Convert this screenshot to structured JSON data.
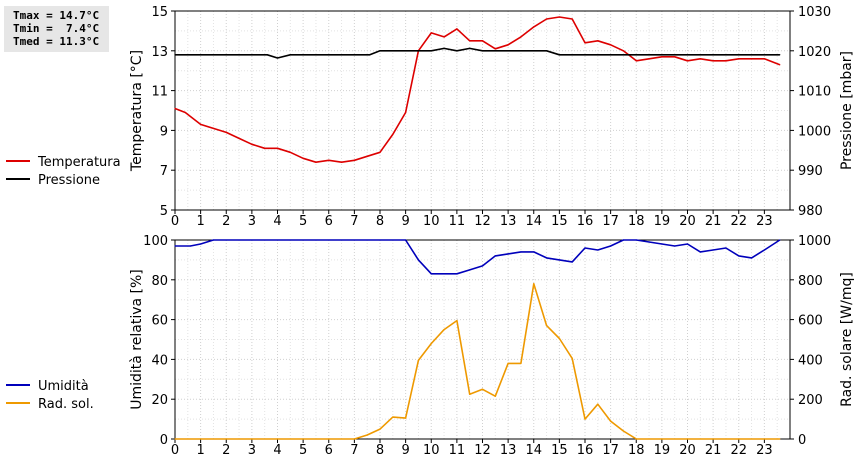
{
  "stats": {
    "tmax": "Tmax = 14.7°C",
    "tmin": "Tmin =  7.4°C",
    "tmed": "Tmed = 11.3°C"
  },
  "chart_data": [
    {
      "type": "line",
      "title": "",
      "xlabel": "",
      "x_ticks": [
        "0",
        "1",
        "2",
        "3",
        "4",
        "5",
        "6",
        "7",
        "8",
        "9",
        "10",
        "11",
        "12",
        "13",
        "14",
        "15",
        "16",
        "17",
        "18",
        "19",
        "20",
        "21",
        "22",
        "23"
      ],
      "xlim": [
        0,
        24
      ],
      "ylabel": "Temperatura [°C]",
      "ylim": [
        5,
        15
      ],
      "y_ticks": [
        "5",
        "7",
        "9",
        "11",
        "13",
        "15"
      ],
      "y2label": "Pressione [mbar]",
      "y2lim": [
        980,
        1030
      ],
      "y2_ticks": [
        "980",
        "990",
        "1000",
        "1010",
        "1020",
        "1030"
      ],
      "grid": true,
      "legend_position": "left",
      "series": [
        {
          "name": "Temperatura",
          "axis": "left",
          "color": "#dd0000",
          "points": [
            [
              0,
              10.1
            ],
            [
              0.4,
              9.9
            ],
            [
              1,
              9.3
            ],
            [
              1.5,
              9.1
            ],
            [
              2,
              8.9
            ],
            [
              2.5,
              8.6
            ],
            [
              3,
              8.3
            ],
            [
              3.5,
              8.1
            ],
            [
              4,
              8.1
            ],
            [
              4.5,
              7.9
            ],
            [
              5,
              7.6
            ],
            [
              5.5,
              7.4
            ],
            [
              6,
              7.5
            ],
            [
              6.5,
              7.4
            ],
            [
              7,
              7.5
            ],
            [
              7.5,
              7.7
            ],
            [
              8,
              7.9
            ],
            [
              8.5,
              8.8
            ],
            [
              9,
              9.9
            ],
            [
              9.5,
              13.0
            ],
            [
              10,
              13.9
            ],
            [
              10.5,
              13.7
            ],
            [
              11,
              14.1
            ],
            [
              11.5,
              13.5
            ],
            [
              12,
              13.5
            ],
            [
              12.5,
              13.1
            ],
            [
              13,
              13.3
            ],
            [
              13.5,
              13.7
            ],
            [
              14,
              14.2
            ],
            [
              14.5,
              14.6
            ],
            [
              15,
              14.7
            ],
            [
              15.5,
              14.6
            ],
            [
              16,
              13.4
            ],
            [
              16.5,
              13.5
            ],
            [
              17,
              13.3
            ],
            [
              17.5,
              13.0
            ],
            [
              18,
              12.5
            ],
            [
              18.5,
              12.6
            ],
            [
              19,
              12.7
            ],
            [
              19.5,
              12.7
            ],
            [
              20,
              12.5
            ],
            [
              20.5,
              12.6
            ],
            [
              21,
              12.5
            ],
            [
              21.5,
              12.5
            ],
            [
              22,
              12.6
            ],
            [
              22.5,
              12.6
            ],
            [
              23,
              12.6
            ],
            [
              23.6,
              12.3
            ]
          ]
        },
        {
          "name": "Pressione",
          "axis": "right",
          "color": "#000000",
          "points": [
            [
              0,
              1019
            ],
            [
              3.6,
              1019
            ],
            [
              4,
              1018.2
            ],
            [
              4.5,
              1019
            ],
            [
              7.6,
              1019
            ],
            [
              8,
              1020
            ],
            [
              10,
              1020
            ],
            [
              10.5,
              1020.6
            ],
            [
              11,
              1020
            ],
            [
              11.5,
              1020.6
            ],
            [
              12,
              1020
            ],
            [
              14.5,
              1020
            ],
            [
              15,
              1019
            ],
            [
              23.6,
              1019
            ]
          ]
        }
      ]
    },
    {
      "type": "line",
      "title": "",
      "xlabel": "",
      "x_ticks": [
        "0",
        "1",
        "2",
        "3",
        "4",
        "5",
        "6",
        "7",
        "8",
        "9",
        "10",
        "11",
        "12",
        "13",
        "14",
        "15",
        "16",
        "17",
        "18",
        "19",
        "20",
        "21",
        "22",
        "23"
      ],
      "xlim": [
        0,
        24
      ],
      "ylabel": "Umidità relativa [%]",
      "ylim": [
        0,
        100
      ],
      "y_ticks": [
        "0",
        "20",
        "40",
        "60",
        "80",
        "100"
      ],
      "y2label": "Rad. solare [W/mq]",
      "y2lim": [
        0,
        1000
      ],
      "y2_ticks": [
        "0",
        "200",
        "400",
        "600",
        "800",
        "1000"
      ],
      "grid": true,
      "legend_position": "left",
      "series": [
        {
          "name": "Umidità",
          "axis": "left",
          "color": "#0000bb",
          "points": [
            [
              0,
              97
            ],
            [
              0.6,
              97
            ],
            [
              1,
              98
            ],
            [
              1.5,
              100
            ],
            [
              9,
              100
            ],
            [
              9.5,
              90
            ],
            [
              10,
              83
            ],
            [
              11,
              83
            ],
            [
              11.5,
              85
            ],
            [
              12,
              87
            ],
            [
              12.5,
              92
            ],
            [
              13,
              93
            ],
            [
              13.5,
              94
            ],
            [
              14,
              94
            ],
            [
              14.5,
              91
            ],
            [
              15,
              90
            ],
            [
              15.5,
              89
            ],
            [
              16,
              96
            ],
            [
              16.5,
              95
            ],
            [
              17,
              97
            ],
            [
              17.5,
              100
            ],
            [
              18,
              100
            ],
            [
              18.5,
              99
            ],
            [
              19,
              98
            ],
            [
              19.5,
              97
            ],
            [
              20,
              98
            ],
            [
              20.5,
              94
            ],
            [
              21,
              95
            ],
            [
              21.5,
              96
            ],
            [
              22,
              92
            ],
            [
              22.5,
              91
            ],
            [
              23,
              95
            ],
            [
              23.6,
              100
            ]
          ]
        },
        {
          "name": "Rad. sol.",
          "axis": "right",
          "color": "#ee9900",
          "points": [
            [
              0,
              0
            ],
            [
              7,
              0
            ],
            [
              7.5,
              20
            ],
            [
              8,
              50
            ],
            [
              8.5,
              110
            ],
            [
              9,
              105
            ],
            [
              9.5,
              395
            ],
            [
              10,
              480
            ],
            [
              10.5,
              550
            ],
            [
              11,
              595
            ],
            [
              11.5,
              225
            ],
            [
              12,
              250
            ],
            [
              12.5,
              215
            ],
            [
              13,
              380
            ],
            [
              13.5,
              380
            ],
            [
              14,
              780
            ],
            [
              14.5,
              570
            ],
            [
              15,
              505
            ],
            [
              15.5,
              405
            ],
            [
              16,
              100
            ],
            [
              16.5,
              175
            ],
            [
              17,
              90
            ],
            [
              17.5,
              40
            ],
            [
              18,
              0
            ],
            [
              23.6,
              0
            ]
          ]
        }
      ]
    }
  ]
}
